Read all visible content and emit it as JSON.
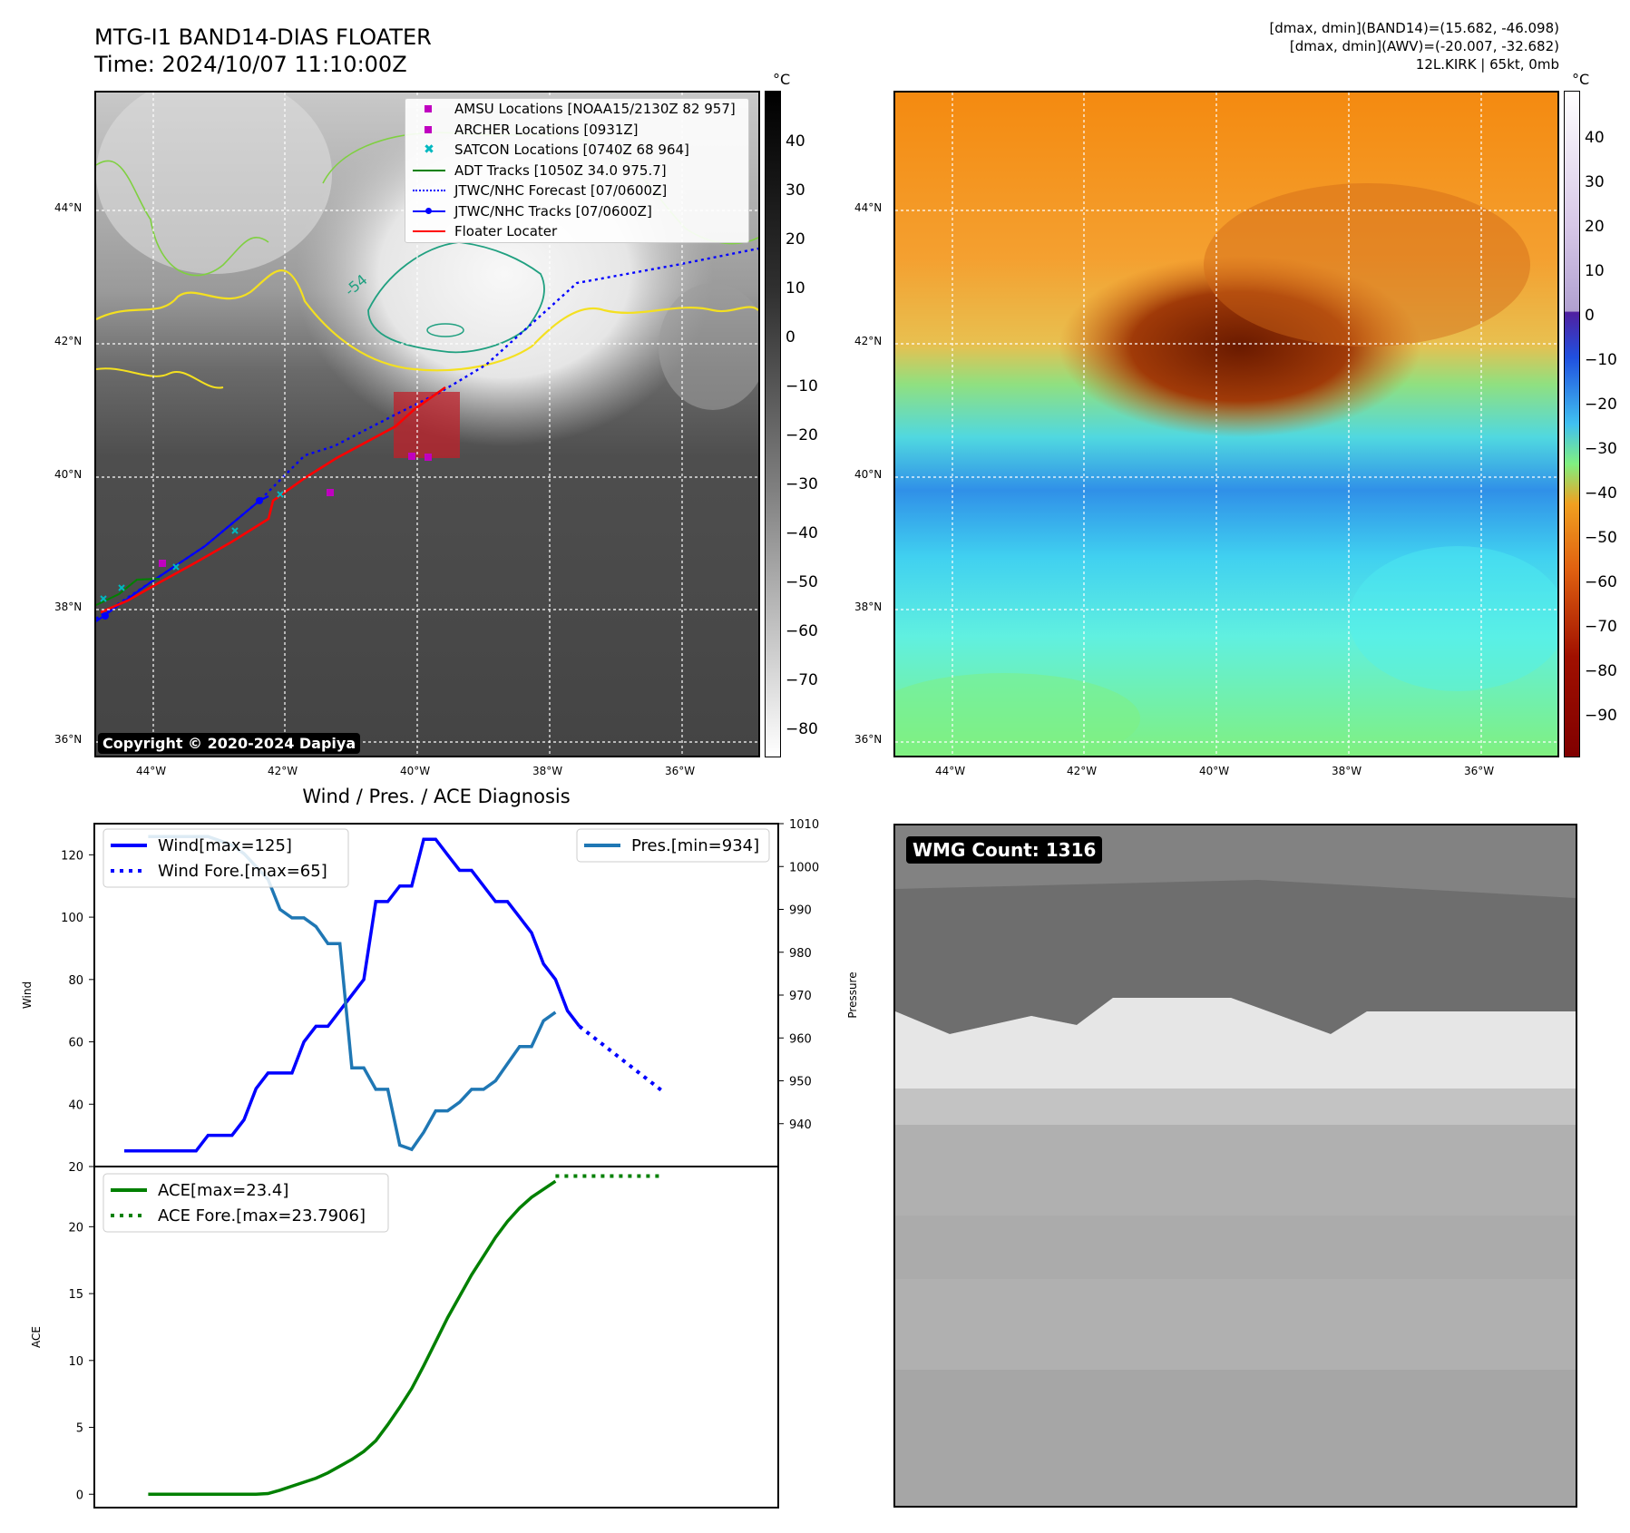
{
  "header": {
    "title_line1": "MTG-I1 BAND14-DIAS FLOATER",
    "title_line2": "Time: 2024/10/07 11:10:00Z",
    "info_line1": "[dmax, dmin](BAND14)=(15.682, -46.098)",
    "info_line2": "[dmax, dmin](AWV)=(-20.007, -32.682)",
    "info_line3": "12L.KIRK | 65kt, 0mb"
  },
  "map": {
    "lat_labels": [
      "44°N",
      "42°N",
      "40°N",
      "38°N",
      "36°N"
    ],
    "lon_labels": [
      "44°W",
      "42°W",
      "40°W",
      "38°W",
      "36°W"
    ],
    "copyright": "Copyright © 2020-2024 Dapiya",
    "contour_label": "-54",
    "legend": [
      {
        "label": "AMSU Locations [NOAA15/2130Z 82 957]",
        "kind": "square",
        "color": "#c000c0"
      },
      {
        "label": "ARCHER Locations [0931Z]",
        "kind": "square",
        "color": "#c000c0"
      },
      {
        "label": "SATCON Locations [0740Z 68 964]",
        "kind": "x",
        "color": "#00b8c0"
      },
      {
        "label": "ADT Tracks [1050Z 34.0 975.7]",
        "kind": "line",
        "color": "#008000"
      },
      {
        "label": "JTWC/NHC Forecast [07/0600Z]",
        "kind": "dotted",
        "color": "#0000ff"
      },
      {
        "label": "JTWC/NHC Tracks [07/0600Z]",
        "kind": "line-dot",
        "color": "#0000ff"
      },
      {
        "label": "Floater Locater",
        "kind": "line",
        "color": "#ff0000"
      }
    ],
    "colorbar_unit": "°C",
    "colorbar_ir_ticks": [
      "40",
      "30",
      "20",
      "10",
      "0",
      "−10",
      "−20",
      "−30",
      "−40",
      "−50",
      "−60",
      "−70",
      "−80"
    ],
    "colorbar_wv_ticks": [
      "40",
      "30",
      "20",
      "10",
      "0",
      "−10",
      "−20",
      "−30",
      "−40",
      "−50",
      "−60",
      "−70",
      "−80",
      "−90"
    ]
  },
  "wmg": {
    "badge": "WMG Count: 1316"
  },
  "colors": {
    "wind": "#0000ff",
    "pressure": "#1f77b4",
    "ace": "#008000",
    "track_red": "#ff0000",
    "contour_yellow": "#f4e020",
    "contour_green": "#7fd040",
    "contour_teal": "#20a080"
  },
  "chart_data": [
    {
      "type": "line",
      "title": "Wind / Pres. / ACE Diagnosis",
      "ylabel": "Wind",
      "ylabel_right": "Pressure",
      "ylim": [
        20,
        130
      ],
      "ylim_right": [
        930,
        1010
      ],
      "yticks": [
        "120",
        "100",
        "80",
        "60",
        "40",
        "20"
      ],
      "yticks_right": [
        "1010",
        "1000",
        "990",
        "980",
        "970",
        "960",
        "950",
        "940"
      ],
      "series": [
        {
          "name": "Wind[max=125]",
          "axis": "left",
          "style": "solid",
          "values": [
            25,
            25,
            25,
            25,
            25,
            25,
            25,
            30,
            30,
            30,
            35,
            45,
            50,
            50,
            50,
            60,
            65,
            65,
            70,
            75,
            80,
            105,
            105,
            110,
            110,
            125,
            125,
            120,
            115,
            115,
            110,
            105,
            105,
            100,
            95,
            85,
            80,
            70,
            65
          ]
        },
        {
          "name": "Wind Fore.[max=65]",
          "axis": "left",
          "style": "dotted",
          "start_index": 38,
          "values": [
            65,
            62,
            59,
            56,
            53,
            50,
            47,
            44
          ]
        },
        {
          "name": "Pres.[min=934]",
          "axis": "right",
          "style": "solid",
          "values": [
            1007,
            1007,
            1007,
            1007,
            1007,
            1007,
            1006,
            1005,
            1003,
            1000,
            997,
            990,
            988,
            988,
            986,
            982,
            982,
            953,
            953,
            948,
            948,
            935,
            934,
            938,
            943,
            943,
            945,
            948,
            948,
            950,
            954,
            958,
            958,
            964,
            966
          ]
        }
      ]
    },
    {
      "type": "line",
      "ylabel": "ACE",
      "ylim": [
        -1,
        24.5
      ],
      "yticks": [
        "20",
        "15",
        "10",
        "5",
        "0"
      ],
      "series": [
        {
          "name": "ACE[max=23.4]",
          "style": "solid",
          "values": [
            0,
            0,
            0,
            0,
            0,
            0,
            0,
            0,
            0,
            0,
            0.05,
            0.3,
            0.6,
            0.9,
            1.2,
            1.6,
            2.1,
            2.6,
            3.2,
            4.0,
            5.2,
            6.5,
            7.9,
            9.6,
            11.4,
            13.2,
            14.8,
            16.4,
            17.8,
            19.2,
            20.4,
            21.4,
            22.2,
            22.8,
            23.4
          ]
        },
        {
          "name": "ACE Fore.[max=23.7906]",
          "style": "dotted",
          "start_index": 34,
          "values": [
            23.79,
            23.79,
            23.79,
            23.79,
            23.79,
            23.79,
            23.79,
            23.79,
            23.79,
            23.79
          ]
        }
      ]
    }
  ]
}
